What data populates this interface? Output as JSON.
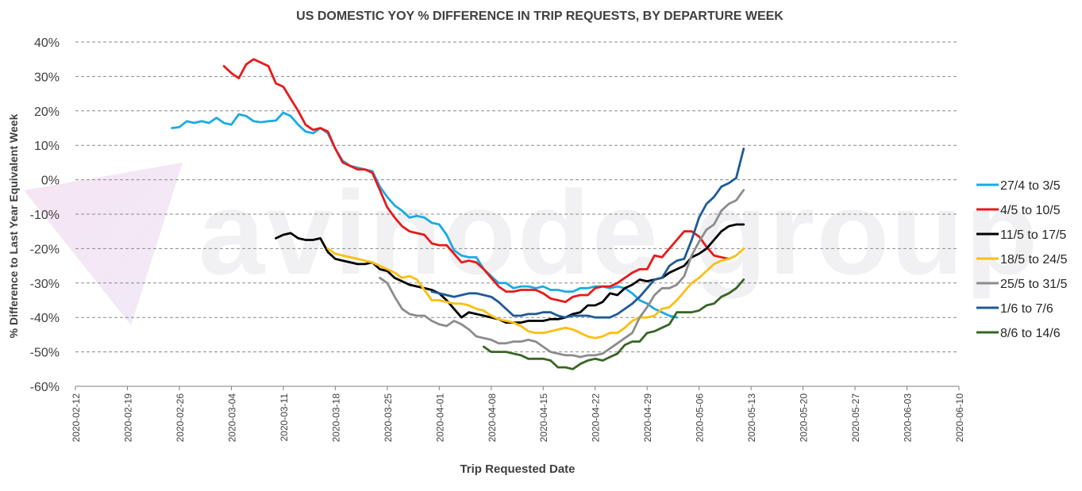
{
  "chart_data": {
    "type": "line",
    "title": "US DOMESTIC YOY % DIFFERENCE IN TRIP REQUESTS, BY DEPARTURE WEEK",
    "xlabel": "Trip Requested Date",
    "ylabel": "% Difference to Last Year Equivalent Week",
    "watermark": "avinode group",
    "x_ticks": [
      "2020-02-12",
      "2020-02-19",
      "2020-02-26",
      "2020-03-04",
      "2020-03-11",
      "2020-03-18",
      "2020-03-25",
      "2020-04-01",
      "2020-04-08",
      "2020-04-15",
      "2020-04-22",
      "2020-04-29",
      "2020-05-06",
      "2020-05-13",
      "2020-05-20",
      "2020-05-27",
      "2020-06-03",
      "2020-06-10"
    ],
    "xlim": [
      "2020-02-12",
      "2020-06-10"
    ],
    "y_ticks": [
      40,
      30,
      20,
      10,
      0,
      -10,
      -20,
      -30,
      -40,
      -50,
      -60
    ],
    "y_tick_labels": [
      "40%",
      "30%",
      "20%",
      "10%",
      "0%",
      "-10%",
      "-20%",
      "-30%",
      "-40%",
      "-50%",
      "-60%"
    ],
    "ylim": [
      -60,
      40
    ],
    "grid": "horizontal dashed",
    "legend_position": "right",
    "series": [
      {
        "name": "27/4 to 3/5",
        "color": "#1aabe3",
        "dates": [
          "2020-02-25",
          "2020-02-26",
          "2020-02-27",
          "2020-02-28",
          "2020-02-29",
          "2020-03-01",
          "2020-03-02",
          "2020-03-03",
          "2020-03-04",
          "2020-03-05",
          "2020-03-06",
          "2020-03-07",
          "2020-03-08",
          "2020-03-09",
          "2020-03-10",
          "2020-03-11",
          "2020-03-12",
          "2020-03-13",
          "2020-03-14",
          "2020-03-15",
          "2020-03-16",
          "2020-03-17",
          "2020-03-18",
          "2020-03-19",
          "2020-03-20",
          "2020-03-21",
          "2020-03-22",
          "2020-03-23",
          "2020-03-24",
          "2020-03-25",
          "2020-03-26",
          "2020-03-27",
          "2020-03-28",
          "2020-03-29",
          "2020-03-30",
          "2020-03-31",
          "2020-04-01",
          "2020-04-02",
          "2020-04-03",
          "2020-04-04",
          "2020-04-05",
          "2020-04-06",
          "2020-04-07",
          "2020-04-08",
          "2020-04-09",
          "2020-04-10",
          "2020-04-11",
          "2020-04-12",
          "2020-04-13",
          "2020-04-14",
          "2020-04-15",
          "2020-04-16",
          "2020-04-17",
          "2020-04-18",
          "2020-04-19",
          "2020-04-20",
          "2020-04-21",
          "2020-04-22",
          "2020-04-23",
          "2020-04-24",
          "2020-04-25",
          "2020-04-26",
          "2020-04-27",
          "2020-04-28",
          "2020-04-29",
          "2020-04-30",
          "2020-05-01",
          "2020-05-02",
          "2020-05-03"
        ],
        "values": [
          15,
          15.3,
          17,
          16.5,
          17,
          16.5,
          18,
          16.5,
          16,
          19,
          18.5,
          17,
          16.7,
          17,
          17.2,
          19.5,
          18.5,
          16,
          14,
          13.5,
          15,
          13.5,
          9,
          5.5,
          4,
          3.5,
          3,
          2.5,
          -2,
          -5,
          -7.5,
          -9,
          -11,
          -10.5,
          -11,
          -12.5,
          -13,
          -16,
          -20.5,
          -22,
          -22.5,
          -22.5,
          -26,
          -28,
          -30,
          -30,
          -31.5,
          -31,
          -31,
          -31.5,
          -31,
          -32,
          -32,
          -32.5,
          -32.5,
          -31.5,
          -31.5,
          -31,
          -31,
          -31.5,
          -31,
          -31.5,
          -33,
          -35,
          -36,
          -37.5,
          -38.5,
          -39.5,
          -40
        ]
      },
      {
        "name": "4/5 to 10/5",
        "color": "#e8191a",
        "dates": [
          "2020-03-03",
          "2020-03-04",
          "2020-03-05",
          "2020-03-06",
          "2020-03-07",
          "2020-03-08",
          "2020-03-09",
          "2020-03-10",
          "2020-03-11",
          "2020-03-12",
          "2020-03-13",
          "2020-03-14",
          "2020-03-15",
          "2020-03-16",
          "2020-03-17",
          "2020-03-18",
          "2020-03-19",
          "2020-03-20",
          "2020-03-21",
          "2020-03-22",
          "2020-03-23",
          "2020-03-24",
          "2020-03-25",
          "2020-03-26",
          "2020-03-27",
          "2020-03-28",
          "2020-03-29",
          "2020-03-30",
          "2020-03-31",
          "2020-04-01",
          "2020-04-02",
          "2020-04-03",
          "2020-04-04",
          "2020-04-05",
          "2020-04-06",
          "2020-04-07",
          "2020-04-08",
          "2020-04-09",
          "2020-04-10",
          "2020-04-11",
          "2020-04-12",
          "2020-04-13",
          "2020-04-14",
          "2020-04-15",
          "2020-04-16",
          "2020-04-17",
          "2020-04-18",
          "2020-04-19",
          "2020-04-20",
          "2020-04-21",
          "2020-04-22",
          "2020-04-23",
          "2020-04-24",
          "2020-04-25",
          "2020-04-26",
          "2020-04-27",
          "2020-04-28",
          "2020-04-29",
          "2020-04-30",
          "2020-05-01",
          "2020-05-02",
          "2020-05-03",
          "2020-05-04",
          "2020-05-05",
          "2020-05-06",
          "2020-05-07",
          "2020-05-08",
          "2020-05-09",
          "2020-05-10"
        ],
        "values": [
          33,
          31,
          29.5,
          33.5,
          35,
          34,
          33,
          28,
          27,
          23.5,
          20,
          16,
          14.5,
          15,
          14,
          9,
          5,
          4,
          3,
          3,
          2,
          -3,
          -8,
          -11,
          -13.5,
          -15,
          -15.5,
          -16,
          -18.5,
          -19,
          -19,
          -21.5,
          -24,
          -23.5,
          -24,
          -26,
          -28.5,
          -31,
          -32.5,
          -32.5,
          -32,
          -32,
          -32,
          -33,
          -34.5,
          -35,
          -35.5,
          -34,
          -33.5,
          -33.5,
          -31.5,
          -31,
          -31,
          -30,
          -28.5,
          -27,
          -26,
          -26,
          -22,
          -22.5,
          -20,
          -17.5,
          -15,
          -15,
          -16.5,
          -19.5,
          -22,
          -22.5,
          -23
        ]
      },
      {
        "name": "11/5 to 17/5",
        "color": "#000000",
        "dates": [
          "2020-03-10",
          "2020-03-11",
          "2020-03-12",
          "2020-03-13",
          "2020-03-14",
          "2020-03-15",
          "2020-03-16",
          "2020-03-17",
          "2020-03-18",
          "2020-03-19",
          "2020-03-20",
          "2020-03-21",
          "2020-03-22",
          "2020-03-23",
          "2020-03-24",
          "2020-03-25",
          "2020-03-26",
          "2020-03-27",
          "2020-03-28",
          "2020-03-29",
          "2020-03-30",
          "2020-03-31",
          "2020-04-01",
          "2020-04-02",
          "2020-04-03",
          "2020-04-04",
          "2020-04-05",
          "2020-04-06",
          "2020-04-07",
          "2020-04-08",
          "2020-04-09",
          "2020-04-10",
          "2020-04-11",
          "2020-04-12",
          "2020-04-13",
          "2020-04-14",
          "2020-04-15",
          "2020-04-16",
          "2020-04-17",
          "2020-04-18",
          "2020-04-19",
          "2020-04-20",
          "2020-04-21",
          "2020-04-22",
          "2020-04-23",
          "2020-04-24",
          "2020-04-25",
          "2020-04-26",
          "2020-04-27",
          "2020-04-28",
          "2020-04-29",
          "2020-04-30",
          "2020-05-01",
          "2020-05-02",
          "2020-05-03",
          "2020-05-04",
          "2020-05-05",
          "2020-05-06",
          "2020-05-07",
          "2020-05-08",
          "2020-05-09",
          "2020-05-10",
          "2020-05-11",
          "2020-05-12"
        ],
        "values": [
          -17,
          -16,
          -15.5,
          -17,
          -17.5,
          -17.5,
          -17,
          -21,
          -23,
          -23.5,
          -24,
          -24.5,
          -24.5,
          -24,
          -26,
          -26.5,
          -28.5,
          -29.5,
          -30.5,
          -31,
          -31.5,
          -32,
          -33,
          -35,
          -37.5,
          -40,
          -38.5,
          -39,
          -39.5,
          -40,
          -40.5,
          -41.5,
          -41.5,
          -41.5,
          -41,
          -41,
          -41,
          -40.5,
          -40.5,
          -40,
          -39,
          -38.5,
          -36.5,
          -36.5,
          -35.5,
          -33,
          -33.5,
          -31.5,
          -30.5,
          -29,
          -29.5,
          -29,
          -28.5,
          -27,
          -26,
          -25,
          -22.5,
          -21.5,
          -20,
          -17.5,
          -15,
          -13.5,
          -13,
          -13
        ]
      },
      {
        "name": "18/5 to 24/5",
        "color": "#fbbf12",
        "dates": [
          "2020-03-17",
          "2020-03-18",
          "2020-03-19",
          "2020-03-20",
          "2020-03-21",
          "2020-03-22",
          "2020-03-23",
          "2020-03-24",
          "2020-03-25",
          "2020-03-26",
          "2020-03-27",
          "2020-03-28",
          "2020-03-29",
          "2020-03-30",
          "2020-03-31",
          "2020-04-01",
          "2020-04-02",
          "2020-04-03",
          "2020-04-04",
          "2020-04-05",
          "2020-04-06",
          "2020-04-07",
          "2020-04-08",
          "2020-04-09",
          "2020-04-10",
          "2020-04-11",
          "2020-04-12",
          "2020-04-13",
          "2020-04-14",
          "2020-04-15",
          "2020-04-16",
          "2020-04-17",
          "2020-04-18",
          "2020-04-19",
          "2020-04-20",
          "2020-04-21",
          "2020-04-22",
          "2020-04-23",
          "2020-04-24",
          "2020-04-25",
          "2020-04-26",
          "2020-04-27",
          "2020-04-28",
          "2020-04-29",
          "2020-04-30",
          "2020-05-01",
          "2020-05-02",
          "2020-05-03",
          "2020-05-04",
          "2020-05-05",
          "2020-05-06",
          "2020-05-07",
          "2020-05-08",
          "2020-05-09",
          "2020-05-10",
          "2020-05-11",
          "2020-05-12"
        ],
        "values": [
          -20,
          -21.5,
          -22,
          -22.5,
          -23,
          -23.5,
          -24,
          -25,
          -26,
          -27,
          -28.5,
          -28,
          -29,
          -32,
          -35,
          -35,
          -35.5,
          -36,
          -36,
          -36.5,
          -37.5,
          -38,
          -39.5,
          -40.5,
          -41,
          -41.5,
          -42.5,
          -44,
          -44.5,
          -44.5,
          -44,
          -43.5,
          -43,
          -43.5,
          -44.5,
          -45.5,
          -46,
          -45.5,
          -44.5,
          -44.5,
          -43,
          -41,
          -40,
          -40,
          -39.5,
          -37.5,
          -37,
          -35,
          -32.5,
          -30,
          -28.5,
          -26.5,
          -24.5,
          -23.5,
          -23,
          -22,
          -20
        ]
      },
      {
        "name": "25/5 to 31/5",
        "color": "#8c8c8c",
        "dates": [
          "2020-03-24",
          "2020-03-25",
          "2020-03-26",
          "2020-03-27",
          "2020-03-28",
          "2020-03-29",
          "2020-03-30",
          "2020-03-31",
          "2020-04-01",
          "2020-04-02",
          "2020-04-03",
          "2020-04-04",
          "2020-04-05",
          "2020-04-06",
          "2020-04-07",
          "2020-04-08",
          "2020-04-09",
          "2020-04-10",
          "2020-04-11",
          "2020-04-12",
          "2020-04-13",
          "2020-04-14",
          "2020-04-15",
          "2020-04-16",
          "2020-04-17",
          "2020-04-18",
          "2020-04-19",
          "2020-04-20",
          "2020-04-21",
          "2020-04-22",
          "2020-04-23",
          "2020-04-24",
          "2020-04-25",
          "2020-04-26",
          "2020-04-27",
          "2020-04-28",
          "2020-04-29",
          "2020-04-30",
          "2020-05-01",
          "2020-05-02",
          "2020-05-03",
          "2020-05-04",
          "2020-05-05",
          "2020-05-06",
          "2020-05-07",
          "2020-05-08",
          "2020-05-09",
          "2020-05-10",
          "2020-05-11",
          "2020-05-12"
        ],
        "values": [
          -28.5,
          -30,
          -34,
          -37.5,
          -39,
          -39.5,
          -39.5,
          -41,
          -42,
          -42.5,
          -41,
          -42,
          -43.5,
          -45.5,
          -46,
          -46.5,
          -47.5,
          -47.5,
          -47,
          -47,
          -46.5,
          -47,
          -48.5,
          -50,
          -50.5,
          -51,
          -51,
          -51.5,
          -51,
          -51,
          -50.5,
          -49,
          -47.5,
          -46,
          -44.5,
          -40,
          -37,
          -33.5,
          -31.5,
          -31.5,
          -30.5,
          -28,
          -22,
          -18,
          -14.5,
          -13,
          -9,
          -7,
          -6,
          -3
        ]
      },
      {
        "name": "1/6 to 7/6",
        "color": "#1f5a96",
        "dates": [
          "2020-03-31",
          "2020-04-01",
          "2020-04-02",
          "2020-04-03",
          "2020-04-04",
          "2020-04-05",
          "2020-04-06",
          "2020-04-07",
          "2020-04-08",
          "2020-04-09",
          "2020-04-10",
          "2020-04-11",
          "2020-04-12",
          "2020-04-13",
          "2020-04-14",
          "2020-04-15",
          "2020-04-16",
          "2020-04-17",
          "2020-04-18",
          "2020-04-19",
          "2020-04-20",
          "2020-04-21",
          "2020-04-22",
          "2020-04-23",
          "2020-04-24",
          "2020-04-25",
          "2020-04-26",
          "2020-04-27",
          "2020-04-28",
          "2020-04-29",
          "2020-04-30",
          "2020-05-01",
          "2020-05-02",
          "2020-05-03",
          "2020-05-04",
          "2020-05-05",
          "2020-05-06",
          "2020-05-07",
          "2020-05-08",
          "2020-05-09",
          "2020-05-10",
          "2020-05-11",
          "2020-05-12"
        ],
        "values": [
          -32.5,
          -33,
          -33.5,
          -34,
          -33.5,
          -33,
          -33,
          -33.5,
          -34,
          -35.5,
          -37.5,
          -39.5,
          -39.5,
          -39,
          -39,
          -38.5,
          -38.5,
          -39.5,
          -40,
          -39.5,
          -39.5,
          -39.5,
          -40,
          -40,
          -40,
          -39,
          -37.5,
          -36,
          -34,
          -31.5,
          -29,
          -28.5,
          -25,
          -23.5,
          -23,
          -17.5,
          -11,
          -7,
          -5,
          -2,
          -1,
          0.5,
          9
        ]
      },
      {
        "name": "8/6 to 14/6",
        "color": "#386525",
        "dates": [
          "2020-04-07",
          "2020-04-08",
          "2020-04-09",
          "2020-04-10",
          "2020-04-11",
          "2020-04-12",
          "2020-04-13",
          "2020-04-14",
          "2020-04-15",
          "2020-04-16",
          "2020-04-17",
          "2020-04-18",
          "2020-04-19",
          "2020-04-20",
          "2020-04-21",
          "2020-04-22",
          "2020-04-23",
          "2020-04-24",
          "2020-04-25",
          "2020-04-26",
          "2020-04-27",
          "2020-04-28",
          "2020-04-29",
          "2020-04-30",
          "2020-05-01",
          "2020-05-02",
          "2020-05-03",
          "2020-05-04",
          "2020-05-05",
          "2020-05-06",
          "2020-05-07",
          "2020-05-08",
          "2020-05-09",
          "2020-05-10",
          "2020-05-11",
          "2020-05-12"
        ],
        "values": [
          -48.5,
          -50,
          -50,
          -50,
          -50.5,
          -51,
          -52,
          -52,
          -52,
          -52.5,
          -54.5,
          -54.5,
          -55,
          -53.5,
          -52.5,
          -52,
          -52.5,
          -51.5,
          -50.5,
          -48,
          -47,
          -47,
          -44.5,
          -44,
          -43,
          -42,
          -38.5,
          -38.5,
          -38.5,
          -38,
          -36.5,
          -36,
          -34,
          -33,
          -31.5,
          -29
        ]
      }
    ]
  }
}
